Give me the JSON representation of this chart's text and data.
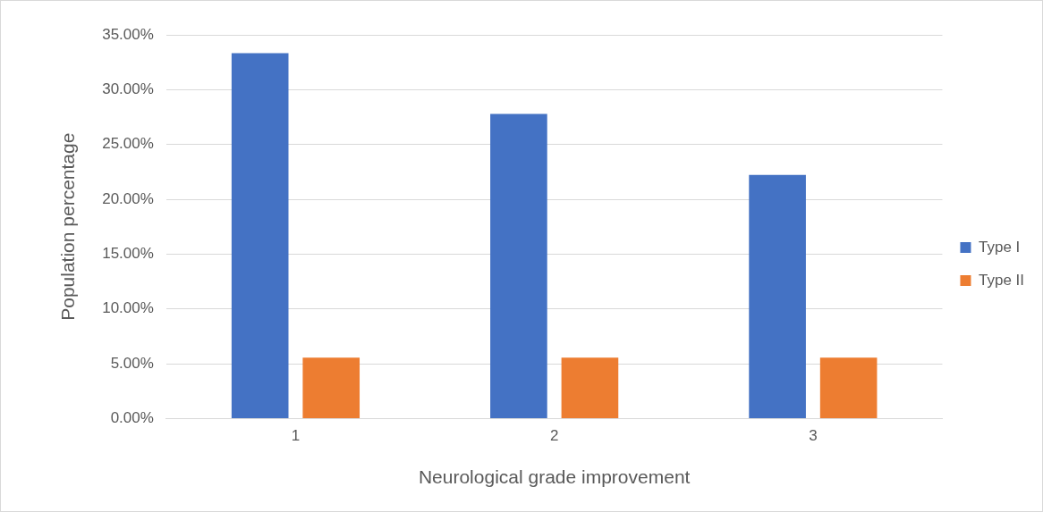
{
  "chart_data": {
    "type": "bar",
    "xlabel": "Neurological grade improvement",
    "ylabel": "Population percentage",
    "categories": [
      "1",
      "2",
      "3"
    ],
    "series": [
      {
        "name": "Type I",
        "color": "#4472c4",
        "values": [
          33.33,
          27.78,
          22.22
        ]
      },
      {
        "name": "Type II",
        "color": "#ed7d31",
        "values": [
          5.56,
          5.56,
          5.56
        ]
      }
    ],
    "ylim": [
      0,
      35
    ],
    "yticks": [
      {
        "value": 0,
        "label": "0.00%"
      },
      {
        "value": 5,
        "label": "5.00%"
      },
      {
        "value": 10,
        "label": "10.00%"
      },
      {
        "value": 15,
        "label": "15.00%"
      },
      {
        "value": 20,
        "label": "20.00%"
      },
      {
        "value": 25,
        "label": "25.00%"
      },
      {
        "value": 30,
        "label": "30.00%"
      },
      {
        "value": 35,
        "label": "35.00%"
      }
    ],
    "grid": "y",
    "legend": "right"
  }
}
